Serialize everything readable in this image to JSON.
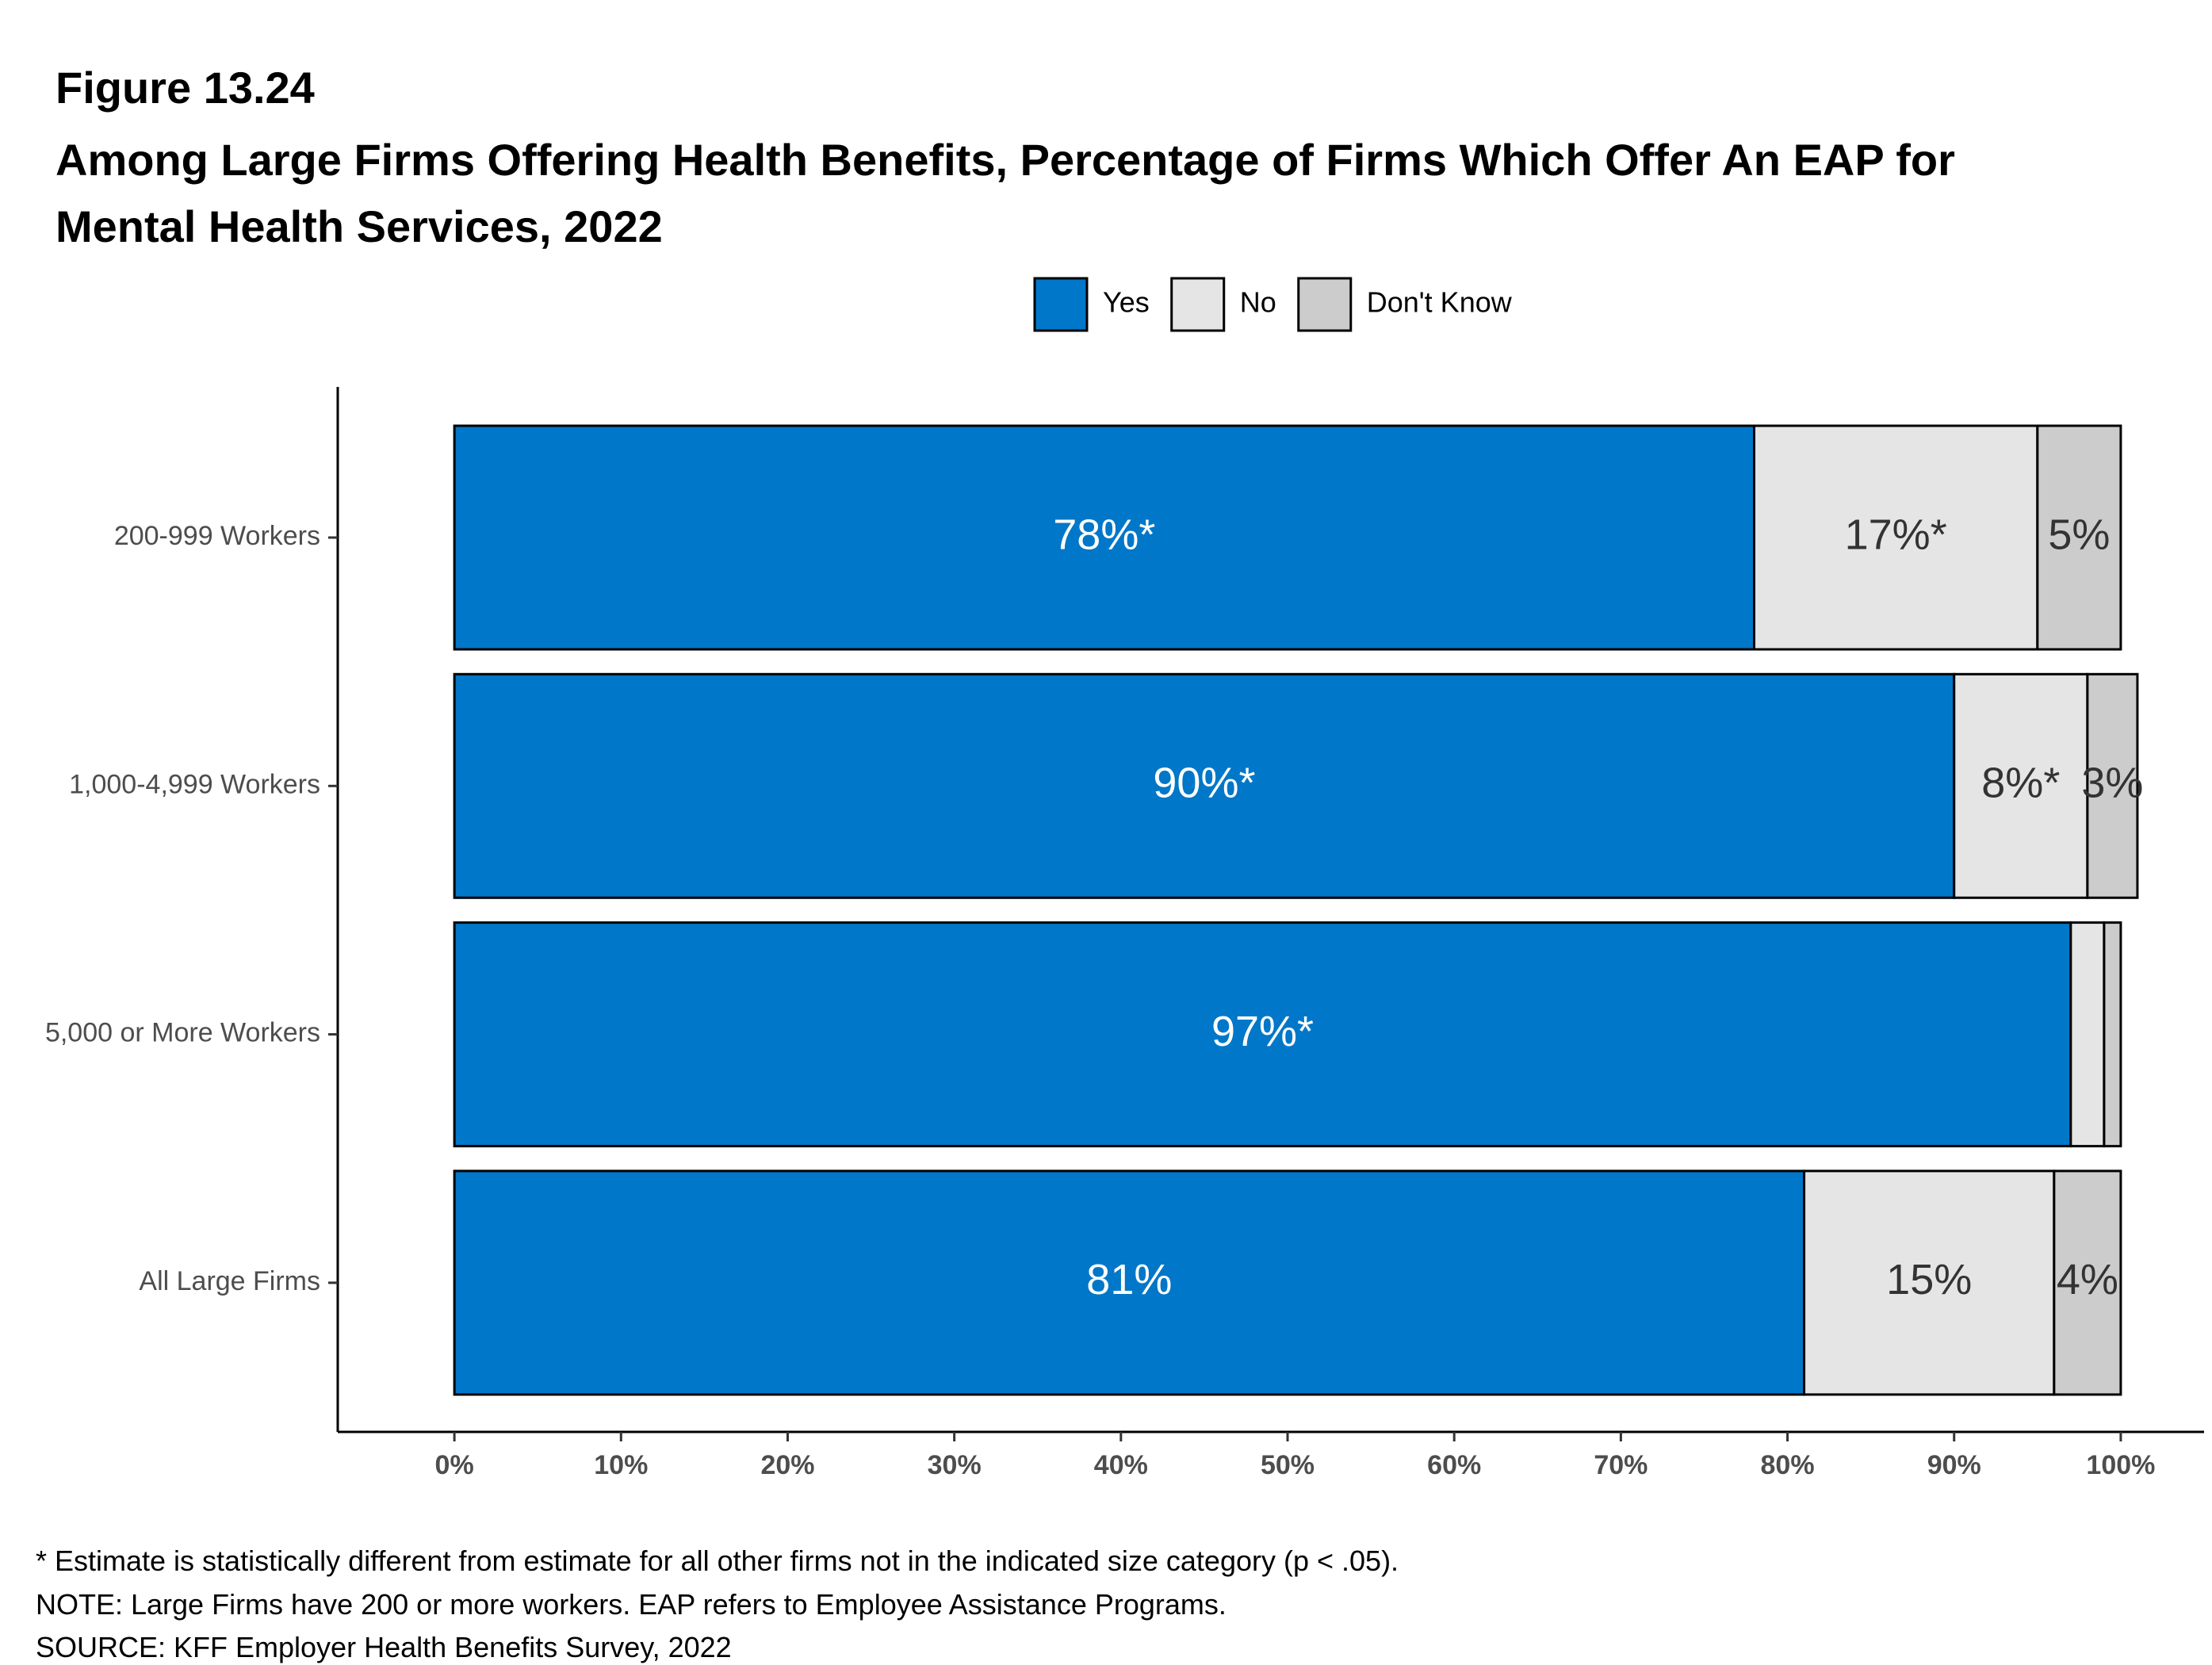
{
  "figure_label": "Figure 13.24",
  "chart_data": {
    "type": "stacked-bar-horizontal",
    "title": "Among Large Firms Offering Health Benefits, Percentage of Firms Which Offer An EAP for Mental Health Services, 2022",
    "categories": [
      "200-999 Workers",
      "1,000-4,999 Workers",
      "5,000 or More Workers",
      "All Large Firms"
    ],
    "series": [
      {
        "name": "Yes",
        "color": "#0077c8",
        "label_color": "#ffffff",
        "values": [
          78,
          90,
          97,
          81
        ],
        "value_labels": [
          "78%*",
          "90%*",
          "97%*",
          "81%"
        ]
      },
      {
        "name": "No",
        "color": "#e5e5e5",
        "label_color": "#333333",
        "values": [
          17,
          8,
          2,
          15
        ],
        "value_labels": [
          "17%*",
          "8%*",
          null,
          "15%"
        ]
      },
      {
        "name": "Don't Know",
        "color": "#cccccc",
        "label_color": "#333333",
        "values": [
          5,
          3,
          1,
          4
        ],
        "value_labels": [
          "5%",
          "3%",
          null,
          "4%"
        ]
      }
    ],
    "xlim": [
      -7,
      105
    ],
    "xticks": [
      {
        "value": 0,
        "label": "0%"
      },
      {
        "value": 10,
        "label": "10%"
      },
      {
        "value": 20,
        "label": "20%"
      },
      {
        "value": 30,
        "label": "30%"
      },
      {
        "value": 40,
        "label": "40%"
      },
      {
        "value": 50,
        "label": "50%"
      },
      {
        "value": 60,
        "label": "60%"
      },
      {
        "value": 70,
        "label": "70%"
      },
      {
        "value": 80,
        "label": "80%"
      },
      {
        "value": 90,
        "label": "90%"
      },
      {
        "value": 100,
        "label": "100%"
      }
    ],
    "legend_position": "top"
  },
  "notes": [
    "* Estimate is statistically different from estimate for all other firms not in the indicated size category (p < .05).",
    "NOTE: Large Firms have 200 or more workers.  EAP refers to Employee Assistance Programs.",
    "SOURCE: KFF Employer Health Benefits Survey, 2022"
  ]
}
